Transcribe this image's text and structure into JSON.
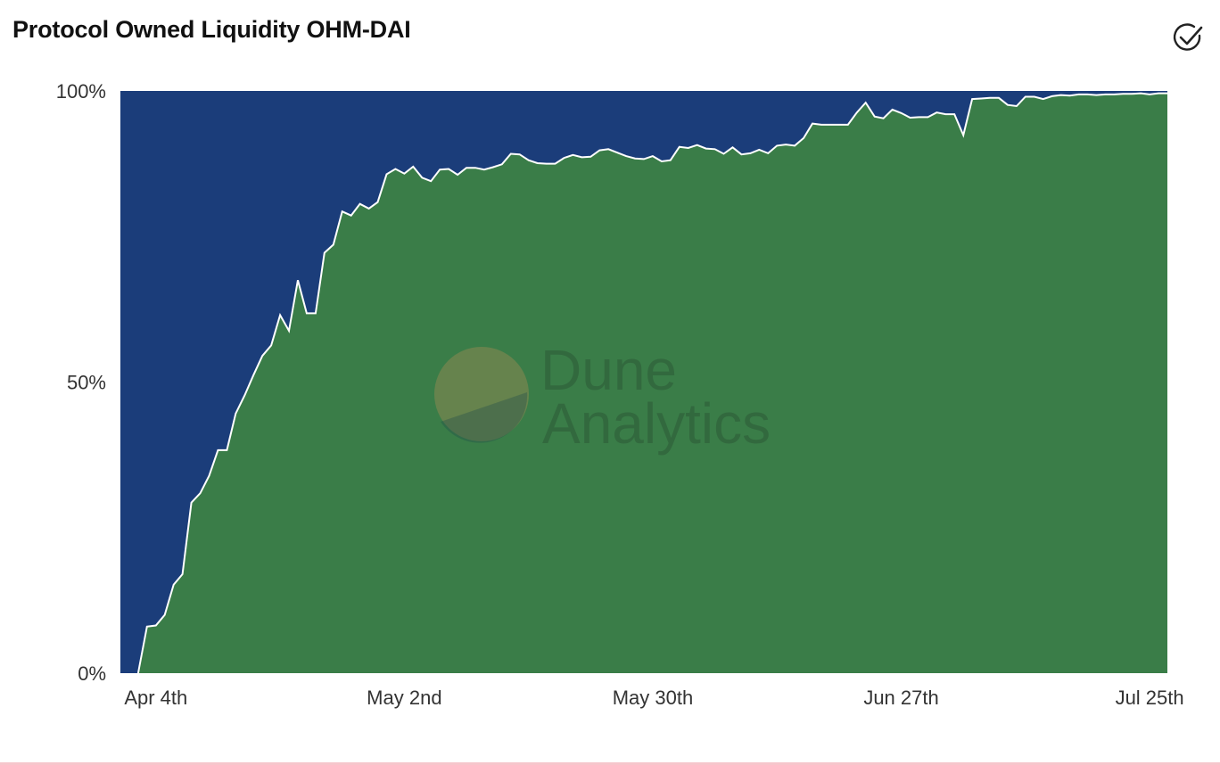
{
  "header": {
    "title": "Protocol Owned Liquidity OHM-DAI",
    "check_icon": "check-circle-icon"
  },
  "watermark": {
    "line1": "Dune",
    "line2": "Analytics"
  },
  "colors": {
    "treasury": "#3a7d48",
    "other": "#1b3d7a",
    "separator": "#ffffff"
  },
  "chart_data": {
    "type": "area",
    "stacked": "percent",
    "title": "Protocol Owned Liquidity OHM-DAI",
    "xlabel": "",
    "ylabel": "",
    "ylim": [
      0,
      100
    ],
    "yticks": [
      "0%",
      "50%",
      "100%"
    ],
    "xticks": [
      {
        "day": 4,
        "label": "Apr 4th"
      },
      {
        "day": 32,
        "label": "May 2nd"
      },
      {
        "day": 60,
        "label": "May 30th"
      },
      {
        "day": 88,
        "label": "Jun 27th"
      },
      {
        "day": 116,
        "label": "Jul 25th"
      }
    ],
    "xlim": [
      0,
      118
    ],
    "grid": false,
    "series": [
      {
        "color": "#3a7d48",
        "values": [
          [
            2,
            0
          ],
          [
            3,
            8
          ],
          [
            4,
            8.2
          ],
          [
            5,
            10
          ],
          [
            6,
            15.2
          ],
          [
            7,
            17
          ],
          [
            8,
            29.3
          ],
          [
            9,
            30.9
          ],
          [
            10,
            33.9
          ],
          [
            11,
            38.3
          ],
          [
            12,
            38.3
          ],
          [
            13,
            44.6
          ],
          [
            14,
            47.7
          ],
          [
            15,
            51.2
          ],
          [
            16,
            54.5
          ],
          [
            17,
            56.3
          ],
          [
            18,
            61.5
          ],
          [
            19,
            58.8
          ],
          [
            20,
            67.5
          ],
          [
            21,
            61.8
          ],
          [
            22,
            61.8
          ],
          [
            23,
            72.2
          ],
          [
            24,
            73.6
          ],
          [
            25,
            79.3
          ],
          [
            26,
            78.6
          ],
          [
            27,
            80.6
          ],
          [
            28,
            79.8
          ],
          [
            29,
            80.9
          ],
          [
            30,
            85.7
          ],
          [
            31,
            86.6
          ],
          [
            32,
            85.8
          ],
          [
            33,
            87.0
          ],
          [
            34,
            85.1
          ],
          [
            35,
            84.5
          ],
          [
            36,
            86.5
          ],
          [
            37,
            86.6
          ],
          [
            38,
            85.6
          ],
          [
            39,
            86.8
          ],
          [
            40,
            86.8
          ],
          [
            41,
            86.5
          ],
          [
            42,
            86.9
          ],
          [
            43,
            87.4
          ],
          [
            44,
            89.2
          ],
          [
            45,
            89.1
          ],
          [
            46,
            88.1
          ],
          [
            47,
            87.6
          ],
          [
            48,
            87.5
          ],
          [
            49,
            87.5
          ],
          [
            50,
            88.5
          ],
          [
            51,
            89.0
          ],
          [
            52,
            88.6
          ],
          [
            53,
            88.7
          ],
          [
            54,
            89.8
          ],
          [
            55,
            90.0
          ],
          [
            56,
            89.4
          ],
          [
            57,
            88.8
          ],
          [
            58,
            88.4
          ],
          [
            59,
            88.3
          ],
          [
            60,
            88.8
          ],
          [
            61,
            87.9
          ],
          [
            62,
            88.1
          ],
          [
            63,
            90.4
          ],
          [
            64,
            90.2
          ],
          [
            65,
            90.7
          ],
          [
            66,
            90.1
          ],
          [
            67,
            90.0
          ],
          [
            68,
            89.2
          ],
          [
            69,
            90.3
          ],
          [
            70,
            89.1
          ],
          [
            71,
            89.3
          ],
          [
            72,
            89.9
          ],
          [
            73,
            89.3
          ],
          [
            74,
            90.6
          ],
          [
            75,
            90.8
          ],
          [
            76,
            90.6
          ],
          [
            77,
            91.9
          ],
          [
            78,
            94.4
          ],
          [
            79,
            94.2
          ],
          [
            80,
            94.2
          ],
          [
            81,
            94.2
          ],
          [
            82,
            94.2
          ],
          [
            83,
            96.3
          ],
          [
            84,
            98.0
          ],
          [
            85,
            95.6
          ],
          [
            86,
            95.3
          ],
          [
            87,
            96.8
          ],
          [
            88,
            96.2
          ],
          [
            89,
            95.4
          ],
          [
            90,
            95.5
          ],
          [
            91,
            95.5
          ],
          [
            92,
            96.3
          ],
          [
            93,
            96.0
          ],
          [
            94,
            96.0
          ],
          [
            95,
            92.4
          ],
          [
            96,
            98.6
          ],
          [
            97,
            98.7
          ],
          [
            98,
            98.8
          ],
          [
            99,
            98.8
          ],
          [
            100,
            97.6
          ],
          [
            101,
            97.4
          ],
          [
            102,
            99.0
          ],
          [
            103,
            99.0
          ],
          [
            104,
            98.6
          ],
          [
            105,
            99.1
          ],
          [
            106,
            99.3
          ],
          [
            107,
            99.2
          ],
          [
            108,
            99.4
          ],
          [
            109,
            99.4
          ],
          [
            110,
            99.3
          ],
          [
            111,
            99.4
          ],
          [
            112,
            99.4
          ],
          [
            113,
            99.5
          ],
          [
            114,
            99.5
          ],
          [
            115,
            99.6
          ],
          [
            116,
            99.4
          ],
          [
            117,
            99.6
          ],
          [
            118,
            99.6
          ]
        ]
      },
      {
        "color": "#1b3d7a",
        "values": "remainder to 100%"
      }
    ]
  }
}
